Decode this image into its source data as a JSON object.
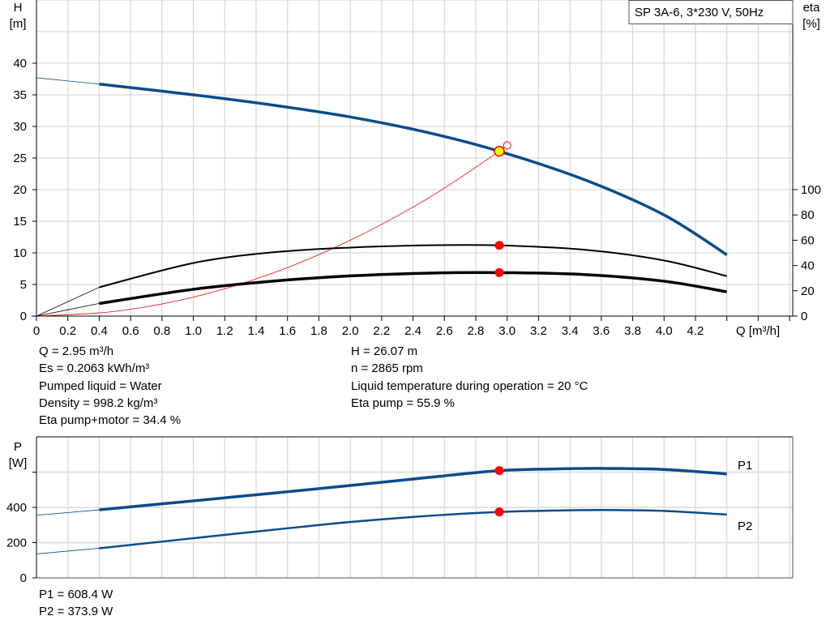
{
  "title_box": "SP 3A-6, 3*230 V, 50Hz",
  "colors": {
    "head_curve": "#0a4b8c",
    "eta_curves": "#000000",
    "system_curve": "#ff0000",
    "operating_point": "#ffff00",
    "marker": "#ff0000",
    "grid": "#d9d9d9",
    "power_curves": "#0a4b8c"
  },
  "chart_data": [
    {
      "type": "line",
      "xlabel": "Q [m³/h]",
      "ylabel_left": [
        "H",
        "[m]"
      ],
      "ylabel_right": [
        "eta",
        "[%]"
      ],
      "xlim": [
        0,
        4.82
      ],
      "ylim_left": [
        0,
        50
      ],
      "ylim_right": [
        0,
        250
      ],
      "x_ticks": [
        0,
        0.2,
        0.4,
        0.6,
        0.8,
        1.0,
        1.2,
        1.4,
        1.6,
        1.8,
        2.0,
        2.2,
        2.4,
        2.6,
        2.8,
        3.0,
        3.2,
        3.4,
        3.6,
        3.8,
        4.0,
        4.2
      ],
      "x_tick_labels": [
        "0",
        "0.2",
        "0.4",
        "0.6",
        "0.8",
        "1.0",
        "1.2",
        "1.4",
        "1.6",
        "1.8",
        "2.0",
        "2.2",
        "2.4",
        "2.6",
        "2.8",
        "3.0",
        "3.2",
        "3.4",
        "3.6",
        "3.8",
        "4.0",
        "4.2"
      ],
      "y_left_ticks": [
        0,
        5,
        10,
        15,
        20,
        25,
        30,
        35,
        40
      ],
      "y_right_ticks": [
        0,
        20,
        40,
        60,
        80,
        100
      ],
      "grid": true,
      "series": [
        {
          "key": "H",
          "axis": "left",
          "x": [
            0,
            0.4,
            1.0,
            1.5,
            2.0,
            2.5,
            2.95,
            3.5,
            4.0,
            4.4
          ],
          "y": [
            37.7,
            36.7,
            35.0,
            33.4,
            31.5,
            29.0,
            26.07,
            21.5,
            16.0,
            9.7
          ]
        },
        {
          "key": "eta_pump",
          "axis": "right",
          "x": [
            0,
            0.4,
            1.0,
            1.5,
            2.0,
            2.5,
            2.95,
            3.5,
            4.0,
            4.4
          ],
          "y": [
            0,
            22.8,
            42.0,
            50.4,
            54.2,
            56.0,
            55.9,
            52.4,
            44.0,
            31.6
          ]
        },
        {
          "key": "eta_total",
          "axis": "right",
          "x": [
            0,
            0.4,
            1.0,
            1.5,
            2.0,
            2.5,
            2.95,
            3.5,
            4.0,
            4.4
          ],
          "y": [
            0,
            10.0,
            21.2,
            27.6,
            31.8,
            34.0,
            34.4,
            32.8,
            27.6,
            19.2
          ]
        },
        {
          "key": "system",
          "axis": "left",
          "x": [
            0,
            0.5,
            1.0,
            1.5,
            2.0,
            2.5,
            2.95,
            3.0
          ],
          "y": [
            0,
            0.75,
            3.0,
            6.74,
            12.0,
            18.7,
            26.07,
            27.0
          ]
        }
      ],
      "operating_point": {
        "Q": 2.95,
        "H": 26.07,
        "eta_pump": 55.9,
        "eta_total": 34.4
      },
      "system_end": {
        "Q": 3.0,
        "H": 27.0
      },
      "extension_until": 0.4
    },
    {
      "type": "line",
      "ylabel_left": [
        "P",
        "[W]"
      ],
      "xlim": [
        0,
        4.82
      ],
      "ylim": [
        0,
        800
      ],
      "y_ticks": [
        0,
        200,
        400,
        600
      ],
      "y_tick_labels": [
        "0",
        "200",
        "400",
        ""
      ],
      "grid": true,
      "series": [
        {
          "name": "P1",
          "x": [
            0,
            0.4,
            1.0,
            1.5,
            2.0,
            2.5,
            2.95,
            3.3,
            3.6,
            4.0,
            4.4
          ],
          "y": [
            355,
            386,
            437,
            480,
            524,
            570,
            608.4,
            618,
            621,
            615,
            590
          ]
        },
        {
          "name": "P2",
          "x": [
            0,
            0.4,
            1.0,
            1.5,
            2.0,
            2.5,
            2.95,
            3.3,
            3.6,
            4.0,
            4.4
          ],
          "y": [
            136,
            168,
            225,
            272,
            317,
            352,
            373.9,
            382,
            385,
            380,
            359
          ]
        }
      ],
      "operating_point": {
        "Q": 2.95,
        "P1": 608.4,
        "P2": 373.9
      }
    }
  ],
  "info_left": [
    "Q = 2.95 m³/h",
    "Es = 0.2063 kWh/m³",
    "Pumped liquid = Water",
    "Density = 998.2 kg/m³",
    "Eta pump+motor = 34.4 %"
  ],
  "info_right": [
    "H = 26.07 m",
    "n = 2865 rpm",
    "Liquid temperature during operation = 20 °C",
    "Eta pump = 55.9 %"
  ],
  "info_power": [
    "P1 = 608.4 W",
    "P2 = 373.9 W"
  ]
}
